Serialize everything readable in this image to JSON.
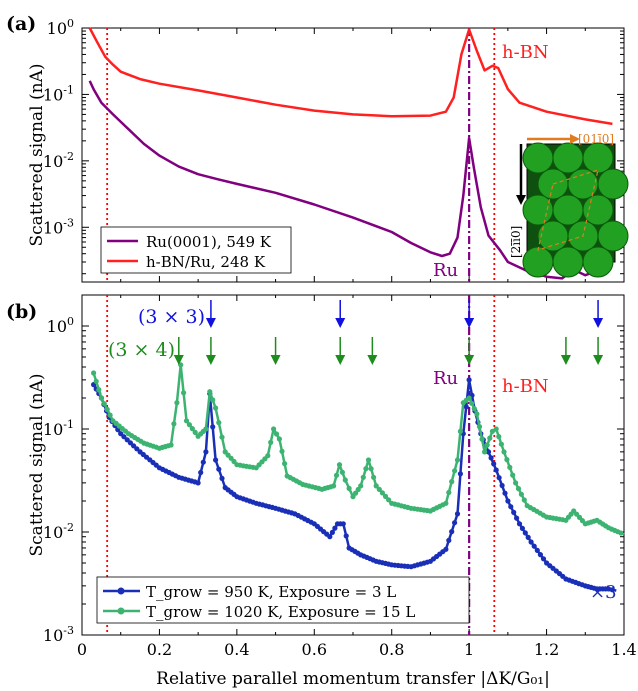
{
  "chart_data": [
    {
      "panel_label": "(a)",
      "type": "line",
      "ylabel": "Scattered signal (nA)",
      "yscale": "log",
      "ylim": [
        0.00015,
        1
      ],
      "xlim": [
        0,
        1.4
      ],
      "y_ticks": [
        "10^0",
        "10^-1",
        "10^-2",
        "10^-3"
      ],
      "series": [
        {
          "name": "Ru(0001), 549 K",
          "color": "#800080",
          "points": [
            [
              0.02,
              0.16
            ],
            [
              0.03,
              0.12
            ],
            [
              0.05,
              0.075
            ],
            [
              0.08,
              0.05
            ],
            [
              0.12,
              0.03
            ],
            [
              0.16,
              0.018
            ],
            [
              0.2,
              0.012
            ],
            [
              0.25,
              0.0082
            ],
            [
              0.3,
              0.0063
            ],
            [
              0.35,
              0.0053
            ],
            [
              0.4,
              0.0045
            ],
            [
              0.5,
              0.0033
            ],
            [
              0.6,
              0.0022
            ],
            [
              0.7,
              0.0014
            ],
            [
              0.8,
              0.00085
            ],
            [
              0.85,
              0.00058
            ],
            [
              0.9,
              0.00042
            ],
            [
              0.93,
              0.00037
            ],
            [
              0.95,
              0.0004
            ],
            [
              0.97,
              0.0007
            ],
            [
              0.985,
              0.003
            ],
            [
              1.0,
              0.022
            ],
            [
              1.012,
              0.008
            ],
            [
              1.03,
              0.002
            ],
            [
              1.05,
              0.00075
            ],
            [
              1.08,
              0.00045
            ],
            [
              1.1,
              0.0003
            ],
            [
              1.15,
              0.00022
            ],
            [
              1.2,
              0.00018
            ],
            [
              1.24,
              0.00017
            ],
            [
              1.27,
              0.00023
            ],
            [
              1.3,
              0.00019
            ],
            [
              1.33,
              0.00022
            ],
            [
              1.36,
              0.00024
            ]
          ]
        },
        {
          "name": "h-BN/Ru, 248 K",
          "color": "#ff2020",
          "points": [
            [
              0.02,
              1.0
            ],
            [
              0.04,
              0.6
            ],
            [
              0.06,
              0.37
            ],
            [
              0.08,
              0.28
            ],
            [
              0.1,
              0.22
            ],
            [
              0.15,
              0.17
            ],
            [
              0.2,
              0.145
            ],
            [
              0.3,
              0.115
            ],
            [
              0.4,
              0.09
            ],
            [
              0.5,
              0.07
            ],
            [
              0.6,
              0.057
            ],
            [
              0.7,
              0.05
            ],
            [
              0.8,
              0.047
            ],
            [
              0.9,
              0.048
            ],
            [
              0.94,
              0.055
            ],
            [
              0.96,
              0.09
            ],
            [
              0.98,
              0.4
            ],
            [
              1.0,
              0.95
            ],
            [
              1.02,
              0.45
            ],
            [
              1.04,
              0.23
            ],
            [
              1.06,
              0.27
            ],
            [
              1.075,
              0.25
            ],
            [
              1.1,
              0.12
            ],
            [
              1.13,
              0.075
            ],
            [
              1.2,
              0.055
            ],
            [
              1.3,
              0.042
            ],
            [
              1.37,
              0.036
            ]
          ]
        }
      ],
      "vlines": [
        {
          "x": 0.065,
          "color": "#ff0000",
          "style": "dotted"
        },
        {
          "x": 1.0,
          "color": "#800080",
          "style": "dashdot"
        },
        {
          "x": 1.065,
          "color": "#ff0000",
          "style": "dotted"
        }
      ],
      "annotations": [
        "h-BN",
        "Ru"
      ],
      "inset": {
        "top_label": "[01ī0]",
        "side_label": "[2īī0]"
      },
      "legend": "bottom-left"
    },
    {
      "panel_label": "(b)",
      "type": "line",
      "xlabel": "Relative parallel momentum transfer |ΔK/G₀₁|",
      "ylabel": "Scattered signal (nA)",
      "yscale": "log",
      "ylim": [
        0.001,
        2
      ],
      "xlim": [
        0,
        1.4
      ],
      "x_ticks": [
        "0",
        "0.2",
        "0.4",
        "0.6",
        "0.8",
        "1",
        "1.2",
        "1.4"
      ],
      "y_ticks": [
        "10^0",
        "10^-1",
        "10^-2",
        "10^-3"
      ],
      "series": [
        {
          "name": "T_grow = 950 K, Exposure = 3 L",
          "color": "#1a2fb8",
          "scale_note": "×3",
          "points": [
            [
              0.03,
              0.27
            ],
            [
              0.05,
              0.2
            ],
            [
              0.07,
              0.13
            ],
            [
              0.1,
              0.09
            ],
            [
              0.15,
              0.06
            ],
            [
              0.2,
              0.042
            ],
            [
              0.25,
              0.034
            ],
            [
              0.3,
              0.03
            ],
            [
              0.32,
              0.06
            ],
            [
              0.33,
              0.22
            ],
            [
              0.345,
              0.05
            ],
            [
              0.37,
              0.027
            ],
            [
              0.4,
              0.022
            ],
            [
              0.45,
              0.019
            ],
            [
              0.5,
              0.017
            ],
            [
              0.55,
              0.015
            ],
            [
              0.6,
              0.012
            ],
            [
              0.64,
              0.009
            ],
            [
              0.66,
              0.012
            ],
            [
              0.675,
              0.012
            ],
            [
              0.69,
              0.007
            ],
            [
              0.72,
              0.006
            ],
            [
              0.76,
              0.0052
            ],
            [
              0.8,
              0.0048
            ],
            [
              0.85,
              0.0046
            ],
            [
              0.9,
              0.0052
            ],
            [
              0.94,
              0.0068
            ],
            [
              0.97,
              0.015
            ],
            [
              0.985,
              0.09
            ],
            [
              1.0,
              0.3
            ],
            [
              1.015,
              0.15
            ],
            [
              1.03,
              0.09
            ],
            [
              1.05,
              0.06
            ],
            [
              1.07,
              0.04
            ],
            [
              1.1,
              0.02
            ],
            [
              1.13,
              0.012
            ],
            [
              1.16,
              0.008
            ],
            [
              1.2,
              0.005
            ],
            [
              1.25,
              0.0035
            ],
            [
              1.3,
              0.003
            ],
            [
              1.33,
              0.0028
            ],
            [
              1.36,
              0.0028
            ],
            [
              1.38,
              0.0027
            ]
          ]
        },
        {
          "name": "T_grow = 1020 K, Exposure = 15 L",
          "color": "#3cb371",
          "points": [
            [
              0.03,
              0.35
            ],
            [
              0.05,
              0.2
            ],
            [
              0.08,
              0.12
            ],
            [
              0.12,
              0.09
            ],
            [
              0.16,
              0.073
            ],
            [
              0.2,
              0.065
            ],
            [
              0.23,
              0.07
            ],
            [
              0.245,
              0.18
            ],
            [
              0.255,
              0.42
            ],
            [
              0.27,
              0.12
            ],
            [
              0.3,
              0.085
            ],
            [
              0.32,
              0.1
            ],
            [
              0.33,
              0.23
            ],
            [
              0.345,
              0.16
            ],
            [
              0.37,
              0.06
            ],
            [
              0.4,
              0.045
            ],
            [
              0.45,
              0.042
            ],
            [
              0.48,
              0.055
            ],
            [
              0.495,
              0.1
            ],
            [
              0.51,
              0.08
            ],
            [
              0.53,
              0.035
            ],
            [
              0.57,
              0.029
            ],
            [
              0.62,
              0.026
            ],
            [
              0.65,
              0.028
            ],
            [
              0.665,
              0.045
            ],
            [
              0.68,
              0.032
            ],
            [
              0.7,
              0.022
            ],
            [
              0.72,
              0.028
            ],
            [
              0.74,
              0.05
            ],
            [
              0.76,
              0.028
            ],
            [
              0.8,
              0.019
            ],
            [
              0.85,
              0.017
            ],
            [
              0.9,
              0.016
            ],
            [
              0.94,
              0.019
            ],
            [
              0.97,
              0.05
            ],
            [
              0.985,
              0.18
            ],
            [
              1.0,
              0.2
            ],
            [
              1.02,
              0.14
            ],
            [
              1.04,
              0.06
            ],
            [
              1.06,
              0.095
            ],
            [
              1.07,
              0.1
            ],
            [
              1.09,
              0.06
            ],
            [
              1.12,
              0.03
            ],
            [
              1.15,
              0.018
            ],
            [
              1.2,
              0.014
            ],
            [
              1.25,
              0.013
            ],
            [
              1.27,
              0.016
            ],
            [
              1.3,
              0.012
            ],
            [
              1.33,
              0.013
            ],
            [
              1.36,
              0.011
            ],
            [
              1.4,
              0.0095
            ]
          ]
        }
      ],
      "arrows": [
        {
          "group": "(3 × 3)",
          "color": "#1010e0",
          "x": [
            0.333,
            0.667,
            1.0,
            1.333
          ]
        },
        {
          "group": "(3 × 4)",
          "color": "#1c8c1c",
          "x": [
            0.25,
            0.333,
            0.5,
            0.667,
            0.75,
            1.0,
            1.25,
            1.333
          ]
        }
      ],
      "vlines": [
        {
          "x": 0.065,
          "color": "#ff0000",
          "style": "dotted"
        },
        {
          "x": 1.0,
          "color": "#800080",
          "style": "dashdot"
        },
        {
          "x": 1.065,
          "color": "#ff0000",
          "style": "dotted"
        }
      ],
      "annotations": [
        "Ru",
        "h-BN"
      ],
      "legend": "bottom-left"
    }
  ]
}
